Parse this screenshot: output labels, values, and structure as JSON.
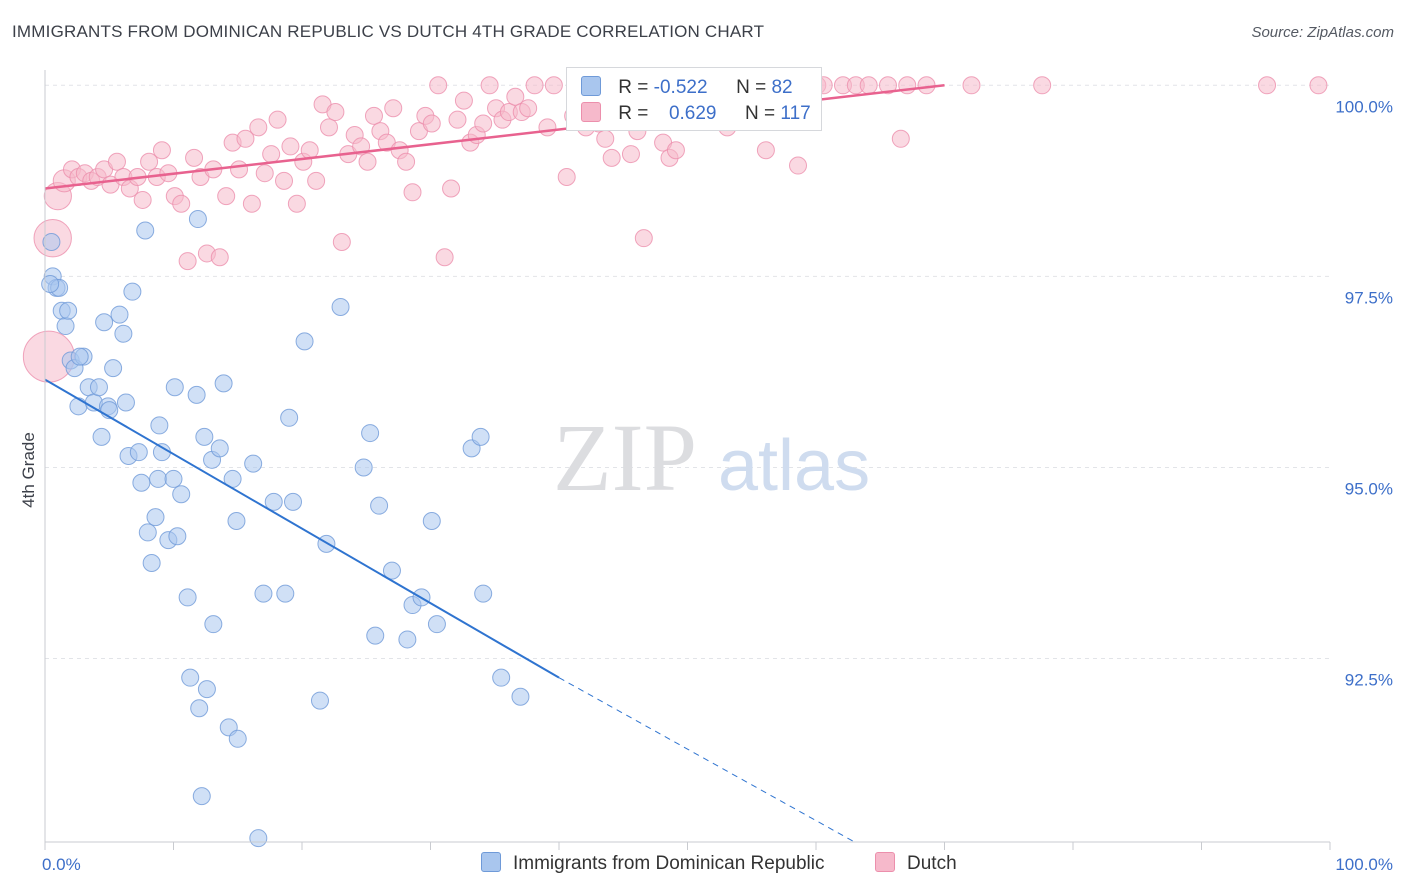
{
  "title": "IMMIGRANTS FROM DOMINICAN REPUBLIC VS DUTCH 4TH GRADE CORRELATION CHART",
  "source": "Source: ZipAtlas.com",
  "watermark": {
    "zip": "ZIP",
    "atlas": "atlas"
  },
  "legend": {
    "blue": {
      "r_label": "R = ",
      "r_value": "-0.522",
      "n_label": "N = ",
      "n_value": "82"
    },
    "pink": {
      "r_label": "R = ",
      "r_value": "0.629",
      "n_label": "N = ",
      "n_value": "117"
    }
  },
  "colors": {
    "blue_fill": "#a9c6ee",
    "blue_stroke": "#6f9ad8",
    "blue_line": "#2f74d0",
    "pink_fill": "#f6b9cb",
    "pink_stroke": "#ec8fac",
    "pink_line": "#e8628f",
    "tick_label": "#3d6fc9",
    "grid": "#e2e4e8"
  },
  "chart_data": {
    "type": "scatter",
    "title": "IMMIGRANTS FROM DOMINICAN REPUBLIC VS DUTCH 4TH GRADE CORRELATION CHART",
    "xlabel": "",
    "ylabel": "4th Grade",
    "xlim": [
      0,
      100
    ],
    "ylim": [
      90.1,
      100.2
    ],
    "x_tick_labels": [
      "0.0%",
      "100.0%"
    ],
    "y_ticks": [
      {
        "value": 92.5,
        "label": "92.5%"
      },
      {
        "value": 95.0,
        "label": "95.0%"
      },
      {
        "value": 97.5,
        "label": "97.5%"
      },
      {
        "value": 100.0,
        "label": "100.0%"
      }
    ],
    "grid": true,
    "legend_position": "bottom-center",
    "series": [
      {
        "name": "Immigrants from Dominican Republic",
        "color": "#a9c6ee",
        "r": -0.522,
        "n": 82,
        "trend": {
          "x": [
            0,
            40
          ],
          "y": [
            96.15,
            92.25
          ],
          "dashed_to": {
            "x": 63,
            "y": 90.1
          }
        },
        "points": [
          [
            0.5,
            97.95,
            1
          ],
          [
            0.6,
            97.5,
            1
          ],
          [
            0.9,
            97.35,
            1
          ],
          [
            1.3,
            97.05,
            1
          ],
          [
            1.6,
            96.85,
            1
          ],
          [
            2.0,
            96.4,
            1
          ],
          [
            2.3,
            96.3,
            1
          ],
          [
            2.6,
            95.8,
            1
          ],
          [
            3.0,
            96.45,
            1
          ],
          [
            3.4,
            96.05,
            1
          ],
          [
            3.8,
            95.85,
            1
          ],
          [
            4.2,
            96.05,
            1
          ],
          [
            4.4,
            95.4,
            1
          ],
          [
            4.6,
            96.9,
            1
          ],
          [
            4.9,
            95.8,
            1
          ],
          [
            5.3,
            96.3,
            1
          ],
          [
            5.8,
            97.0,
            1
          ],
          [
            6.1,
            96.75,
            1
          ],
          [
            6.3,
            95.85,
            1
          ],
          [
            6.5,
            95.15,
            1
          ],
          [
            6.8,
            97.3,
            1
          ],
          [
            7.3,
            95.2,
            1
          ],
          [
            7.5,
            94.8,
            1
          ],
          [
            7.8,
            98.1,
            1
          ],
          [
            8.0,
            94.15,
            1
          ],
          [
            8.3,
            93.75,
            1
          ],
          [
            8.6,
            94.35,
            1
          ],
          [
            8.8,
            94.85,
            1
          ],
          [
            8.9,
            95.55,
            1
          ],
          [
            9.1,
            95.2,
            1
          ],
          [
            9.6,
            94.05,
            1
          ],
          [
            10.0,
            94.85,
            1
          ],
          [
            10.1,
            96.05,
            1
          ],
          [
            10.3,
            94.1,
            1
          ],
          [
            10.6,
            94.65,
            1
          ],
          [
            11.1,
            93.3,
            1
          ],
          [
            11.3,
            92.25,
            1
          ],
          [
            11.9,
            98.25,
            1
          ],
          [
            11.8,
            95.95,
            1
          ],
          [
            12.2,
            90.7,
            1
          ],
          [
            12.4,
            95.4,
            1
          ],
          [
            12.6,
            92.1,
            1
          ],
          [
            13.0,
            95.1,
            1
          ],
          [
            13.1,
            92.95,
            1
          ],
          [
            13.6,
            95.25,
            1
          ],
          [
            13.9,
            96.1,
            1
          ],
          [
            14.3,
            91.6,
            1
          ],
          [
            14.6,
            94.85,
            1
          ],
          [
            14.9,
            94.3,
            1
          ],
          [
            15.0,
            91.45,
            1
          ],
          [
            16.2,
            95.05,
            1
          ],
          [
            16.6,
            90.15,
            1
          ],
          [
            17.0,
            93.35,
            1
          ],
          [
            17.8,
            94.55,
            1
          ],
          [
            18.7,
            93.35,
            1
          ],
          [
            19.0,
            95.65,
            1
          ],
          [
            19.3,
            94.55,
            1
          ],
          [
            20.2,
            96.65,
            1
          ],
          [
            21.4,
            91.95,
            1
          ],
          [
            21.9,
            94.0,
            1
          ],
          [
            23.0,
            97.1,
            1
          ],
          [
            24.8,
            95.0,
            1
          ],
          [
            25.3,
            95.45,
            1
          ],
          [
            25.7,
            92.8,
            1
          ],
          [
            26.0,
            94.5,
            1
          ],
          [
            27.0,
            93.65,
            1
          ],
          [
            28.2,
            92.75,
            1
          ],
          [
            28.6,
            93.2,
            1
          ],
          [
            29.3,
            93.3,
            1
          ],
          [
            30.1,
            94.3,
            1
          ],
          [
            30.5,
            92.95,
            1
          ],
          [
            33.2,
            95.25,
            1
          ],
          [
            33.9,
            95.4,
            1
          ],
          [
            34.1,
            93.35,
            1
          ],
          [
            35.5,
            92.25,
            1
          ],
          [
            37.0,
            92.0,
            1
          ],
          [
            1.1,
            97.35,
            1
          ],
          [
            2.7,
            96.45,
            1
          ],
          [
            5.0,
            95.75,
            1
          ],
          [
            12.0,
            91.85,
            1
          ],
          [
            0.4,
            97.4,
            1
          ],
          [
            1.8,
            97.05,
            1
          ]
        ]
      },
      {
        "name": "Dutch",
        "color": "#f6b9cb",
        "r": 0.629,
        "n": 117,
        "trend": {
          "x": [
            0,
            70
          ],
          "y": [
            98.65,
            100.0
          ]
        },
        "points": [
          [
            0.3,
            96.45,
            3
          ],
          [
            0.6,
            98.0,
            2.2
          ],
          [
            1.0,
            98.55,
            1.6
          ],
          [
            1.5,
            98.75,
            1.3
          ],
          [
            2.1,
            98.9,
            1
          ],
          [
            2.6,
            98.8,
            1
          ],
          [
            3.1,
            98.85,
            1
          ],
          [
            3.6,
            98.75,
            1
          ],
          [
            4.1,
            98.8,
            1
          ],
          [
            4.6,
            98.9,
            1
          ],
          [
            5.1,
            98.7,
            1
          ],
          [
            5.6,
            99.0,
            1
          ],
          [
            6.1,
            98.8,
            1
          ],
          [
            6.6,
            98.65,
            1
          ],
          [
            7.2,
            98.8,
            1
          ],
          [
            7.6,
            98.5,
            1
          ],
          [
            8.1,
            99.0,
            1
          ],
          [
            8.7,
            98.8,
            1
          ],
          [
            9.1,
            99.15,
            1
          ],
          [
            9.6,
            98.85,
            1
          ],
          [
            10.1,
            98.55,
            1
          ],
          [
            10.6,
            98.45,
            1
          ],
          [
            11.1,
            97.7,
            1
          ],
          [
            11.6,
            99.05,
            1
          ],
          [
            12.1,
            98.8,
            1
          ],
          [
            12.6,
            97.8,
            1
          ],
          [
            13.1,
            98.9,
            1
          ],
          [
            13.6,
            97.75,
            1
          ],
          [
            14.1,
            98.55,
            1
          ],
          [
            14.6,
            99.25,
            1
          ],
          [
            15.1,
            98.9,
            1
          ],
          [
            15.6,
            99.3,
            1
          ],
          [
            16.1,
            98.45,
            1
          ],
          [
            16.6,
            99.45,
            1
          ],
          [
            17.1,
            98.85,
            1
          ],
          [
            17.6,
            99.1,
            1
          ],
          [
            18.1,
            99.55,
            1
          ],
          [
            18.6,
            98.75,
            1
          ],
          [
            19.1,
            99.2,
            1
          ],
          [
            19.6,
            98.45,
            1
          ],
          [
            20.1,
            99.0,
            1
          ],
          [
            20.6,
            99.15,
            1
          ],
          [
            21.1,
            98.75,
            1
          ],
          [
            21.6,
            99.75,
            1
          ],
          [
            22.1,
            99.45,
            1
          ],
          [
            22.6,
            99.65,
            1
          ],
          [
            23.1,
            97.95,
            1
          ],
          [
            23.6,
            99.1,
            1
          ],
          [
            24.1,
            99.35,
            1
          ],
          [
            24.6,
            99.2,
            1
          ],
          [
            25.1,
            99.0,
            1
          ],
          [
            25.6,
            99.6,
            1
          ],
          [
            26.1,
            99.4,
            1
          ],
          [
            26.6,
            99.25,
            1
          ],
          [
            27.1,
            99.7,
            1
          ],
          [
            27.6,
            99.15,
            1
          ],
          [
            28.1,
            99.0,
            1
          ],
          [
            28.6,
            98.6,
            1
          ],
          [
            29.1,
            99.4,
            1
          ],
          [
            29.6,
            99.6,
            1
          ],
          [
            30.1,
            99.5,
            1
          ],
          [
            30.6,
            100.0,
            1
          ],
          [
            31.1,
            97.75,
            1
          ],
          [
            31.6,
            98.65,
            1
          ],
          [
            32.1,
            99.55,
            1
          ],
          [
            32.6,
            99.8,
            1
          ],
          [
            33.1,
            99.25,
            1
          ],
          [
            33.6,
            99.35,
            1
          ],
          [
            34.1,
            99.5,
            1
          ],
          [
            34.6,
            100.0,
            1
          ],
          [
            35.1,
            99.7,
            1
          ],
          [
            35.6,
            99.55,
            1
          ],
          [
            36.1,
            99.65,
            1
          ],
          [
            36.6,
            99.85,
            1
          ],
          [
            37.1,
            99.65,
            1
          ],
          [
            37.6,
            99.7,
            1
          ],
          [
            38.1,
            100.0,
            1
          ],
          [
            39.1,
            99.45,
            1
          ],
          [
            39.6,
            100.0,
            1
          ],
          [
            40.6,
            98.8,
            1
          ],
          [
            41.1,
            99.6,
            1
          ],
          [
            42.1,
            99.45,
            1
          ],
          [
            42.6,
            100.0,
            1
          ],
          [
            43.1,
            99.5,
            1
          ],
          [
            44.1,
            99.05,
            1
          ],
          [
            44.6,
            100.0,
            1
          ],
          [
            45.6,
            99.1,
            1
          ],
          [
            46.1,
            99.4,
            1
          ],
          [
            46.6,
            98.0,
            1
          ],
          [
            47.1,
            100.0,
            1
          ],
          [
            48.1,
            99.25,
            1
          ],
          [
            48.6,
            99.05,
            1
          ],
          [
            49.1,
            99.15,
            1
          ],
          [
            50.6,
            100.0,
            1
          ],
          [
            51.6,
            100.0,
            1
          ],
          [
            52.6,
            99.6,
            1
          ],
          [
            53.1,
            99.45,
            1
          ],
          [
            55.1,
            100.0,
            1
          ],
          [
            55.6,
            100.0,
            1
          ],
          [
            56.1,
            99.15,
            1
          ],
          [
            57.1,
            100.0,
            1
          ],
          [
            58.6,
            98.95,
            1
          ],
          [
            60.1,
            100.0,
            1
          ],
          [
            60.6,
            100.0,
            1
          ],
          [
            62.1,
            100.0,
            1
          ],
          [
            63.1,
            100.0,
            1
          ],
          [
            64.1,
            100.0,
            1
          ],
          [
            65.6,
            100.0,
            1
          ],
          [
            66.6,
            99.3,
            1
          ],
          [
            67.1,
            100.0,
            1
          ],
          [
            68.6,
            100.0,
            1
          ],
          [
            72.1,
            100.0,
            1
          ],
          [
            77.6,
            100.0,
            1
          ],
          [
            95.1,
            100.0,
            1
          ],
          [
            99.1,
            100.0,
            1
          ],
          [
            41.6,
            99.65,
            1
          ],
          [
            43.6,
            99.3,
            1
          ]
        ]
      }
    ]
  }
}
